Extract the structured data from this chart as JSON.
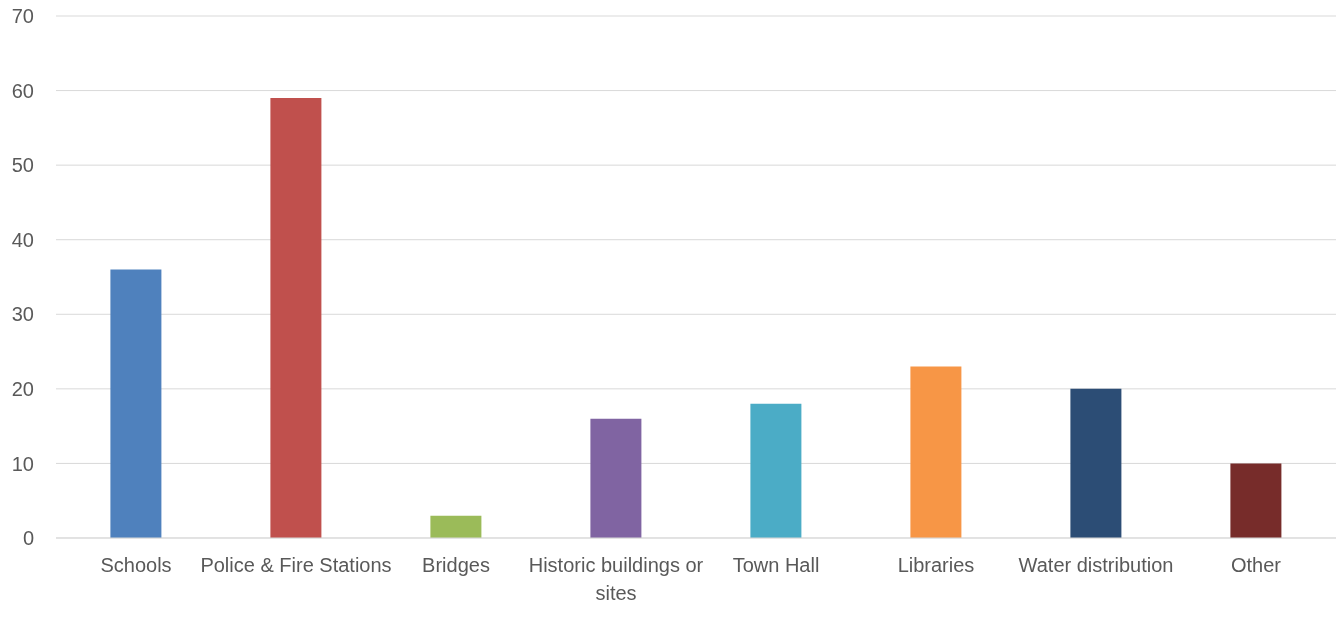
{
  "chart_data": {
    "type": "bar",
    "categories": [
      "Schools",
      "Police & Fire Stations",
      "Bridges",
      "Historic buildings or sites",
      "Town Hall",
      "Libraries",
      "Water distribution",
      "Other"
    ],
    "values": [
      36,
      59,
      3,
      16,
      18,
      23,
      20,
      10
    ],
    "colors": [
      "#4f81bd",
      "#c0504d",
      "#9bbb59",
      "#8064a2",
      "#4bacc6",
      "#f79646",
      "#2c4d75",
      "#772c2a"
    ],
    "ylim": [
      0,
      70
    ],
    "yticks": [
      0,
      10,
      20,
      30,
      40,
      50,
      60,
      70
    ],
    "grid": "y",
    "legend": false
  }
}
